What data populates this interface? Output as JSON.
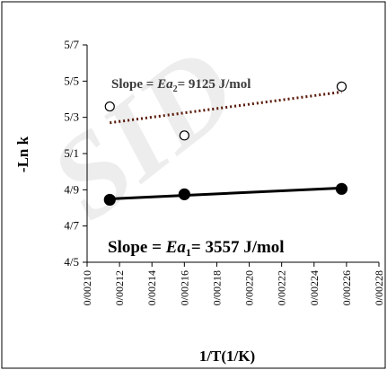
{
  "chart_data": {
    "type": "scatter",
    "ylabel": "-Ln k",
    "xlabel": "1/T(1/K)",
    "xlim": [
      0.0021,
      0.00228
    ],
    "ylim": [
      4.5,
      5.7
    ],
    "xticks": [
      "0/00210",
      "0/00212",
      "0/00214",
      "0/00216",
      "0/00218",
      "0/00220",
      "0/00222",
      "0/00224",
      "0/00226",
      "0/00228"
    ],
    "yticks": [
      "4/5",
      "4/7",
      "4/9",
      "5/1",
      "5/3",
      "5/5",
      "5/7"
    ],
    "grid": false,
    "legend": "none",
    "series": [
      {
        "marker": "open-circle",
        "color": "#000000",
        "x": [
          0.002114,
          0.00216,
          0.002257
        ],
        "y": [
          5.36,
          5.2,
          5.47
        ],
        "trend": {
          "style": "dotted",
          "color": "#5a1a0a",
          "x": [
            0.002114,
            0.002257
          ],
          "y": [
            5.27,
            5.44
          ]
        }
      },
      {
        "marker": "filled-circle",
        "color": "#000000",
        "x": [
          0.002114,
          0.00216,
          0.002257
        ],
        "y": [
          4.845,
          4.875,
          4.905
        ],
        "trend": {
          "style": "solid",
          "color": "#000000",
          "x": [
            0.002114,
            0.002257
          ],
          "y": [
            4.85,
            4.91
          ]
        }
      }
    ],
    "annotations": [
      {
        "parts": [
          "Slope = ",
          "Ea",
          "2",
          "= 9125 J/mol"
        ],
        "at": "upper-left"
      },
      {
        "parts": [
          "Slope = ",
          "Ea",
          "1",
          "= 3557 J/mol"
        ],
        "at": "bottom-center"
      }
    ]
  },
  "watermark": "SID"
}
